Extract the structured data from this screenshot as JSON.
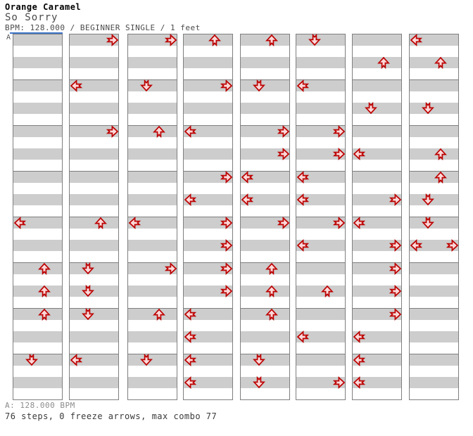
{
  "header": {
    "artist": "Orange Caramel",
    "title": "So Sorry",
    "meta": "BPM: 128.000 / BEGINNER SINGLE / 1 feet"
  },
  "footer": {
    "bpm_line": "A: 128.000 BPM",
    "summary_line": "76 steps, 0 freeze arrows, max combo 77"
  },
  "colors": {
    "arrow_stroke": "#bc0000",
    "arrow_fill": "#fcd9d9",
    "row_gray": "#cdcdcd",
    "strip_border": "#7f7f7f",
    "marker_blue": "#3d74c8"
  },
  "chart": {
    "marker": "A",
    "columns": 8,
    "measures_per_column": 8,
    "rows_per_measure": 4,
    "lane_order": [
      "L",
      "D",
      "U",
      "R"
    ],
    "lane_names": {
      "L": "left",
      "D": "down",
      "U": "up",
      "R": "right"
    },
    "note_format": [
      "column_index",
      "row_1_to_32",
      "direction"
    ],
    "notes": [
      [
        0,
        17,
        "L"
      ],
      [
        0,
        21,
        "U"
      ],
      [
        0,
        23,
        "U"
      ],
      [
        0,
        25,
        "U"
      ],
      [
        0,
        29,
        "D"
      ],
      [
        1,
        1,
        "R"
      ],
      [
        1,
        5,
        "L"
      ],
      [
        1,
        9,
        "R"
      ],
      [
        1,
        17,
        "U"
      ],
      [
        1,
        21,
        "D"
      ],
      [
        1,
        23,
        "D"
      ],
      [
        1,
        25,
        "D"
      ],
      [
        1,
        29,
        "L"
      ],
      [
        2,
        1,
        "R"
      ],
      [
        2,
        5,
        "D"
      ],
      [
        2,
        9,
        "U"
      ],
      [
        2,
        17,
        "L"
      ],
      [
        2,
        21,
        "R"
      ],
      [
        2,
        25,
        "U"
      ],
      [
        2,
        29,
        "D"
      ],
      [
        3,
        1,
        "U"
      ],
      [
        3,
        5,
        "R"
      ],
      [
        3,
        9,
        "L"
      ],
      [
        3,
        13,
        "R"
      ],
      [
        3,
        15,
        "L"
      ],
      [
        3,
        17,
        "R"
      ],
      [
        3,
        19,
        "R"
      ],
      [
        3,
        21,
        "R"
      ],
      [
        3,
        23,
        "R"
      ],
      [
        3,
        25,
        "L"
      ],
      [
        3,
        27,
        "L"
      ],
      [
        3,
        29,
        "L"
      ],
      [
        3,
        31,
        "L"
      ],
      [
        4,
        1,
        "U"
      ],
      [
        4,
        5,
        "D"
      ],
      [
        4,
        9,
        "R"
      ],
      [
        4,
        11,
        "R"
      ],
      [
        4,
        13,
        "L"
      ],
      [
        4,
        15,
        "L"
      ],
      [
        4,
        17,
        "R"
      ],
      [
        4,
        21,
        "U"
      ],
      [
        4,
        23,
        "U"
      ],
      [
        4,
        25,
        "U"
      ],
      [
        4,
        29,
        "D"
      ],
      [
        4,
        31,
        "D"
      ],
      [
        5,
        1,
        "D"
      ],
      [
        5,
        5,
        "L"
      ],
      [
        5,
        9,
        "R"
      ],
      [
        5,
        11,
        "R"
      ],
      [
        5,
        13,
        "L"
      ],
      [
        5,
        15,
        "L"
      ],
      [
        5,
        17,
        "R"
      ],
      [
        5,
        19,
        "L"
      ],
      [
        5,
        23,
        "U"
      ],
      [
        5,
        27,
        "L"
      ],
      [
        5,
        31,
        "R"
      ],
      [
        6,
        3,
        "U"
      ],
      [
        6,
        7,
        "D"
      ],
      [
        6,
        11,
        "L"
      ],
      [
        6,
        15,
        "R"
      ],
      [
        6,
        17,
        "L"
      ],
      [
        6,
        19,
        "R"
      ],
      [
        6,
        21,
        "R"
      ],
      [
        6,
        23,
        "R"
      ],
      [
        6,
        25,
        "R"
      ],
      [
        6,
        27,
        "L"
      ],
      [
        6,
        29,
        "L"
      ],
      [
        6,
        31,
        "L"
      ],
      [
        7,
        1,
        "L"
      ],
      [
        7,
        3,
        "U"
      ],
      [
        7,
        7,
        "D"
      ],
      [
        7,
        11,
        "U"
      ],
      [
        7,
        13,
        "U"
      ],
      [
        7,
        15,
        "D"
      ],
      [
        7,
        17,
        "D"
      ],
      [
        7,
        19,
        "L"
      ],
      [
        7,
        19,
        "R"
      ]
    ]
  }
}
